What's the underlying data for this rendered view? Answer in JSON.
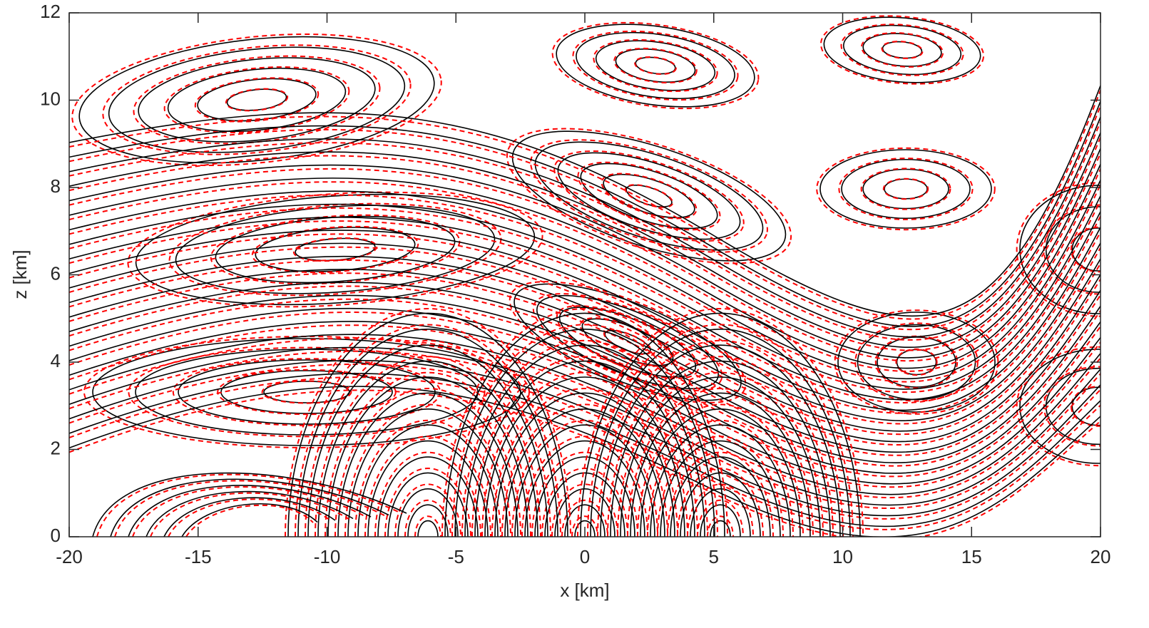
{
  "chart_data": {
    "type": "contour",
    "xlabel": "x [km]",
    "ylabel": "z [km]",
    "xlim": [
      -20,
      20
    ],
    "xticks": [
      -20,
      -15,
      -10,
      -5,
      0,
      5,
      10,
      15,
      20
    ],
    "ylim": [
      0,
      12
    ],
    "yticks": [
      0,
      2,
      4,
      6,
      8,
      10,
      12
    ],
    "line_colors": [
      "#000000",
      "#ff0000"
    ]
  }
}
